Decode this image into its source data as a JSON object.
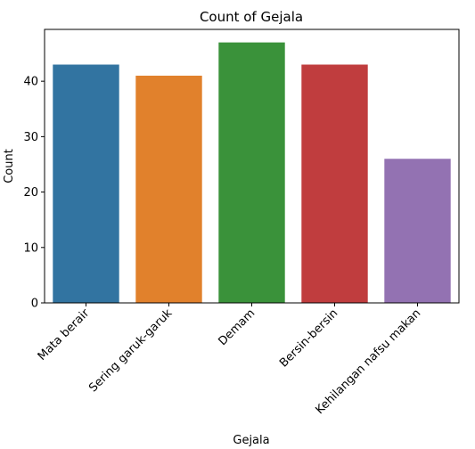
{
  "chart_data": {
    "type": "bar",
    "title": "Count of Gejala",
    "xlabel": "Gejala",
    "ylabel": "Count",
    "categories": [
      "Mata berair",
      "Sering garuk-garuk",
      "Demam",
      "Bersin-bersin",
      "Kehilangan nafsu makan"
    ],
    "values": [
      43,
      41,
      47,
      43,
      26
    ],
    "colors": [
      "#3274a1",
      "#e1812c",
      "#3a923a",
      "#c03d3e",
      "#9372b2"
    ],
    "ylim": [
      0,
      49.35
    ],
    "yticks": [
      0,
      10,
      20,
      30,
      40
    ],
    "ytick_labels": [
      "0",
      "10",
      "20",
      "30",
      "40"
    ],
    "grid": false,
    "legend": "none"
  }
}
